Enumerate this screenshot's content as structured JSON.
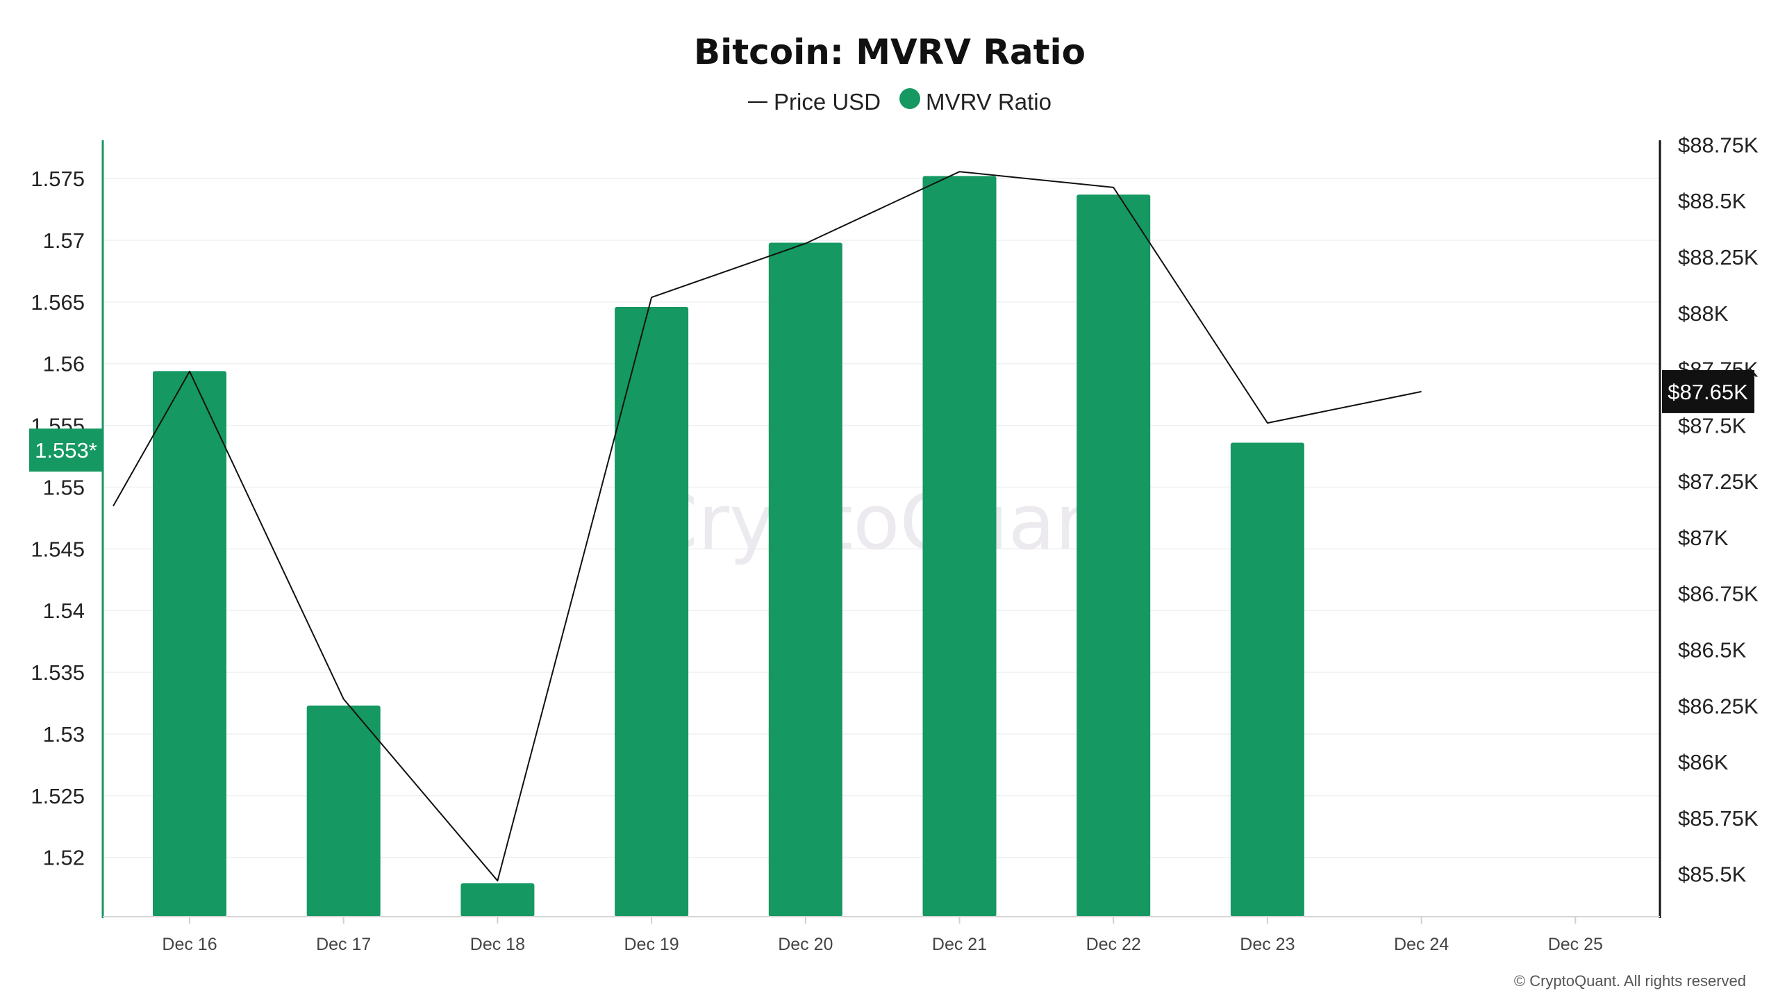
{
  "chart_data": {
    "type": "bar",
    "title": "Bitcoin: MVRV Ratio",
    "legend": {
      "placement": "top-center",
      "items": [
        {
          "label": "Price USD",
          "marker": "line"
        },
        {
          "label": "MVRV Ratio",
          "marker": "dot"
        }
      ]
    },
    "categories": [
      "Dec 16",
      "Dec 17",
      "Dec 18",
      "Dec 19",
      "Dec 20",
      "Dec 21",
      "Dec 22",
      "Dec 23",
      "Dec 24",
      "Dec 25"
    ],
    "series": [
      {
        "name": "MVRV Ratio",
        "type": "bar",
        "axis": "left",
        "color": "#159861",
        "values": [
          1.5594,
          1.5323,
          1.5179,
          1.5646,
          1.5698,
          1.5752,
          1.5737,
          1.5536,
          null,
          null
        ]
      },
      {
        "name": "Price USD",
        "type": "line",
        "axis": "right",
        "color": "#111111",
        "values": [
          87740,
          86280,
          85470,
          88070,
          88310,
          88630,
          88560,
          87510,
          87650,
          null
        ],
        "start_value": 87140
      }
    ],
    "y_left": {
      "ticks": [
        "1.52",
        "1.525",
        "1.53",
        "1.535",
        "1.54",
        "1.545",
        "1.55",
        "1.555",
        "1.56",
        "1.565",
        "1.57",
        "1.575"
      ],
      "tick_values": [
        1.52,
        1.525,
        1.53,
        1.535,
        1.54,
        1.545,
        1.55,
        1.555,
        1.56,
        1.565,
        1.57,
        1.575
      ],
      "range": [
        1.5152,
        1.5781
      ]
    },
    "y_right": {
      "ticks": [
        "$85.5K",
        "$85.75K",
        "$86K",
        "$86.25K",
        "$86.5K",
        "$86.75K",
        "$87K",
        "$87.25K",
        "$87.5K",
        "$87.75K",
        "$88K",
        "$88.25K",
        "$88.5K",
        "$88.75K"
      ],
      "tick_values": [
        85500,
        85750,
        86000,
        86250,
        86500,
        86750,
        87000,
        87250,
        87500,
        87750,
        88000,
        88250,
        88500,
        88750
      ],
      "range": [
        85310,
        88770
      ]
    },
    "current_labels": {
      "left": "1.553*",
      "left_value": 1.553,
      "right": "$87.65K",
      "right_value": 87650
    },
    "grid": true,
    "watermark": "CryptoQuant",
    "copyright": "© CryptoQuant. All rights reserved"
  },
  "colors": {
    "bar": "#159861",
    "left_axis": "#159861",
    "price_line": "#111111",
    "right_flag": "#111111",
    "left_flag": "#159861",
    "grid": "#f0f0f0"
  }
}
